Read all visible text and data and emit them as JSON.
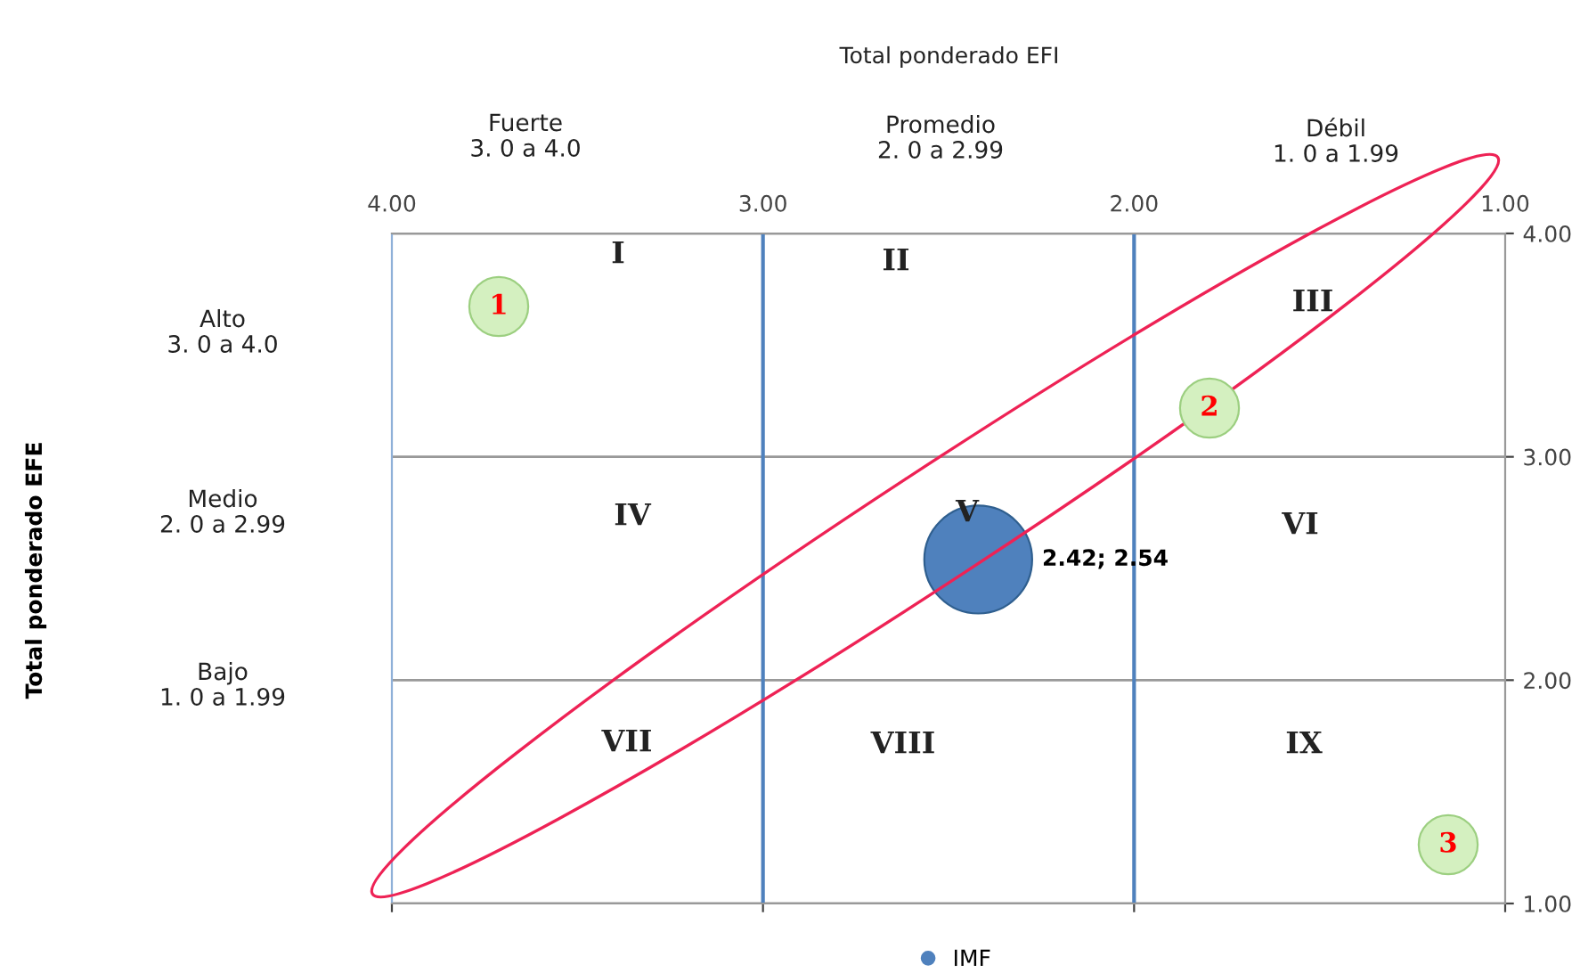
{
  "chart_data": {
    "type": "bubble",
    "series": [
      {
        "name": "IMF",
        "color": "#4f81bd",
        "x": [
          2.42
        ],
        "values": [
          2.54
        ],
        "sizes": [
          1
        ],
        "value_labels": [
          "2.42; 2.54"
        ]
      }
    ],
    "xlim": [
      4,
      1
    ],
    "xticks": [
      {
        "value": 4,
        "label": "4.00"
      },
      {
        "value": 3,
        "label": "3.00"
      },
      {
        "value": 2,
        "label": "2.00"
      },
      {
        "value": 1,
        "label": "1.00"
      }
    ],
    "ylim": [
      1,
      4
    ],
    "yticks": [
      {
        "value": 1,
        "label": "1.00"
      },
      {
        "value": 2,
        "label": "2.00"
      },
      {
        "value": 3,
        "label": "3.00"
      },
      {
        "value": 4,
        "label": "4.00"
      }
    ],
    "tick_labels": "xy",
    "grid": "y",
    "legend": "bottom",
    "ref_lines": [
      {
        "axis": "x",
        "value": 3,
        "color": "#4f81bd"
      },
      {
        "axis": "x",
        "value": 2,
        "color": "#4f81bd"
      }
    ],
    "annotations": [
      "Fuerte\n3. 0 a 4.0",
      "Promedio\n2. 0 a 2.99",
      "Débil\n1. 0 a 1.99",
      "Alto\n3. 0 a 4.0",
      "Medio\n2. 0 a 2.99",
      "Bajo\n1. 0 a 1.99",
      "I",
      "II",
      "III",
      "IV",
      "V",
      "VI",
      "VII",
      "VIII",
      "IX",
      "1",
      "2",
      "3",
      "Total ponderado EFI",
      "Total ponderado EFE"
    ]
  }
}
